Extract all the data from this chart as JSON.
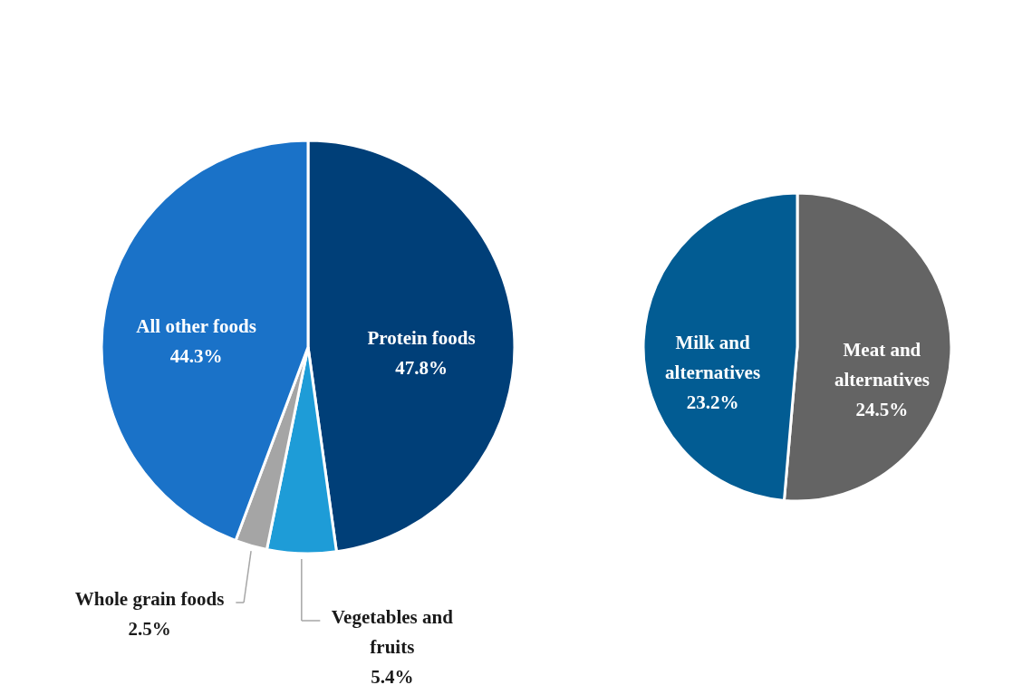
{
  "chart_data": [
    {
      "type": "pie",
      "categories": [
        "Protein foods",
        "Vegetables and fruits",
        "Whole grain foods",
        "All other foods"
      ],
      "values": [
        47.8,
        5.4,
        2.5,
        44.3
      ],
      "value_labels": [
        "47.8%",
        "5.4%",
        "2.5%",
        "44.3%"
      ],
      "colors": [
        "#003f78",
        "#1e9cd7",
        "#a5a5a5",
        "#1a72c8"
      ],
      "legend": false
    },
    {
      "type": "pie",
      "categories": [
        "Meat and alternatives",
        "Milk and alternatives"
      ],
      "values": [
        24.5,
        23.2
      ],
      "value_labels": [
        "24.5%",
        "23.2%"
      ],
      "colors": [
        "#646464",
        "#025c93"
      ],
      "legend": false
    }
  ]
}
